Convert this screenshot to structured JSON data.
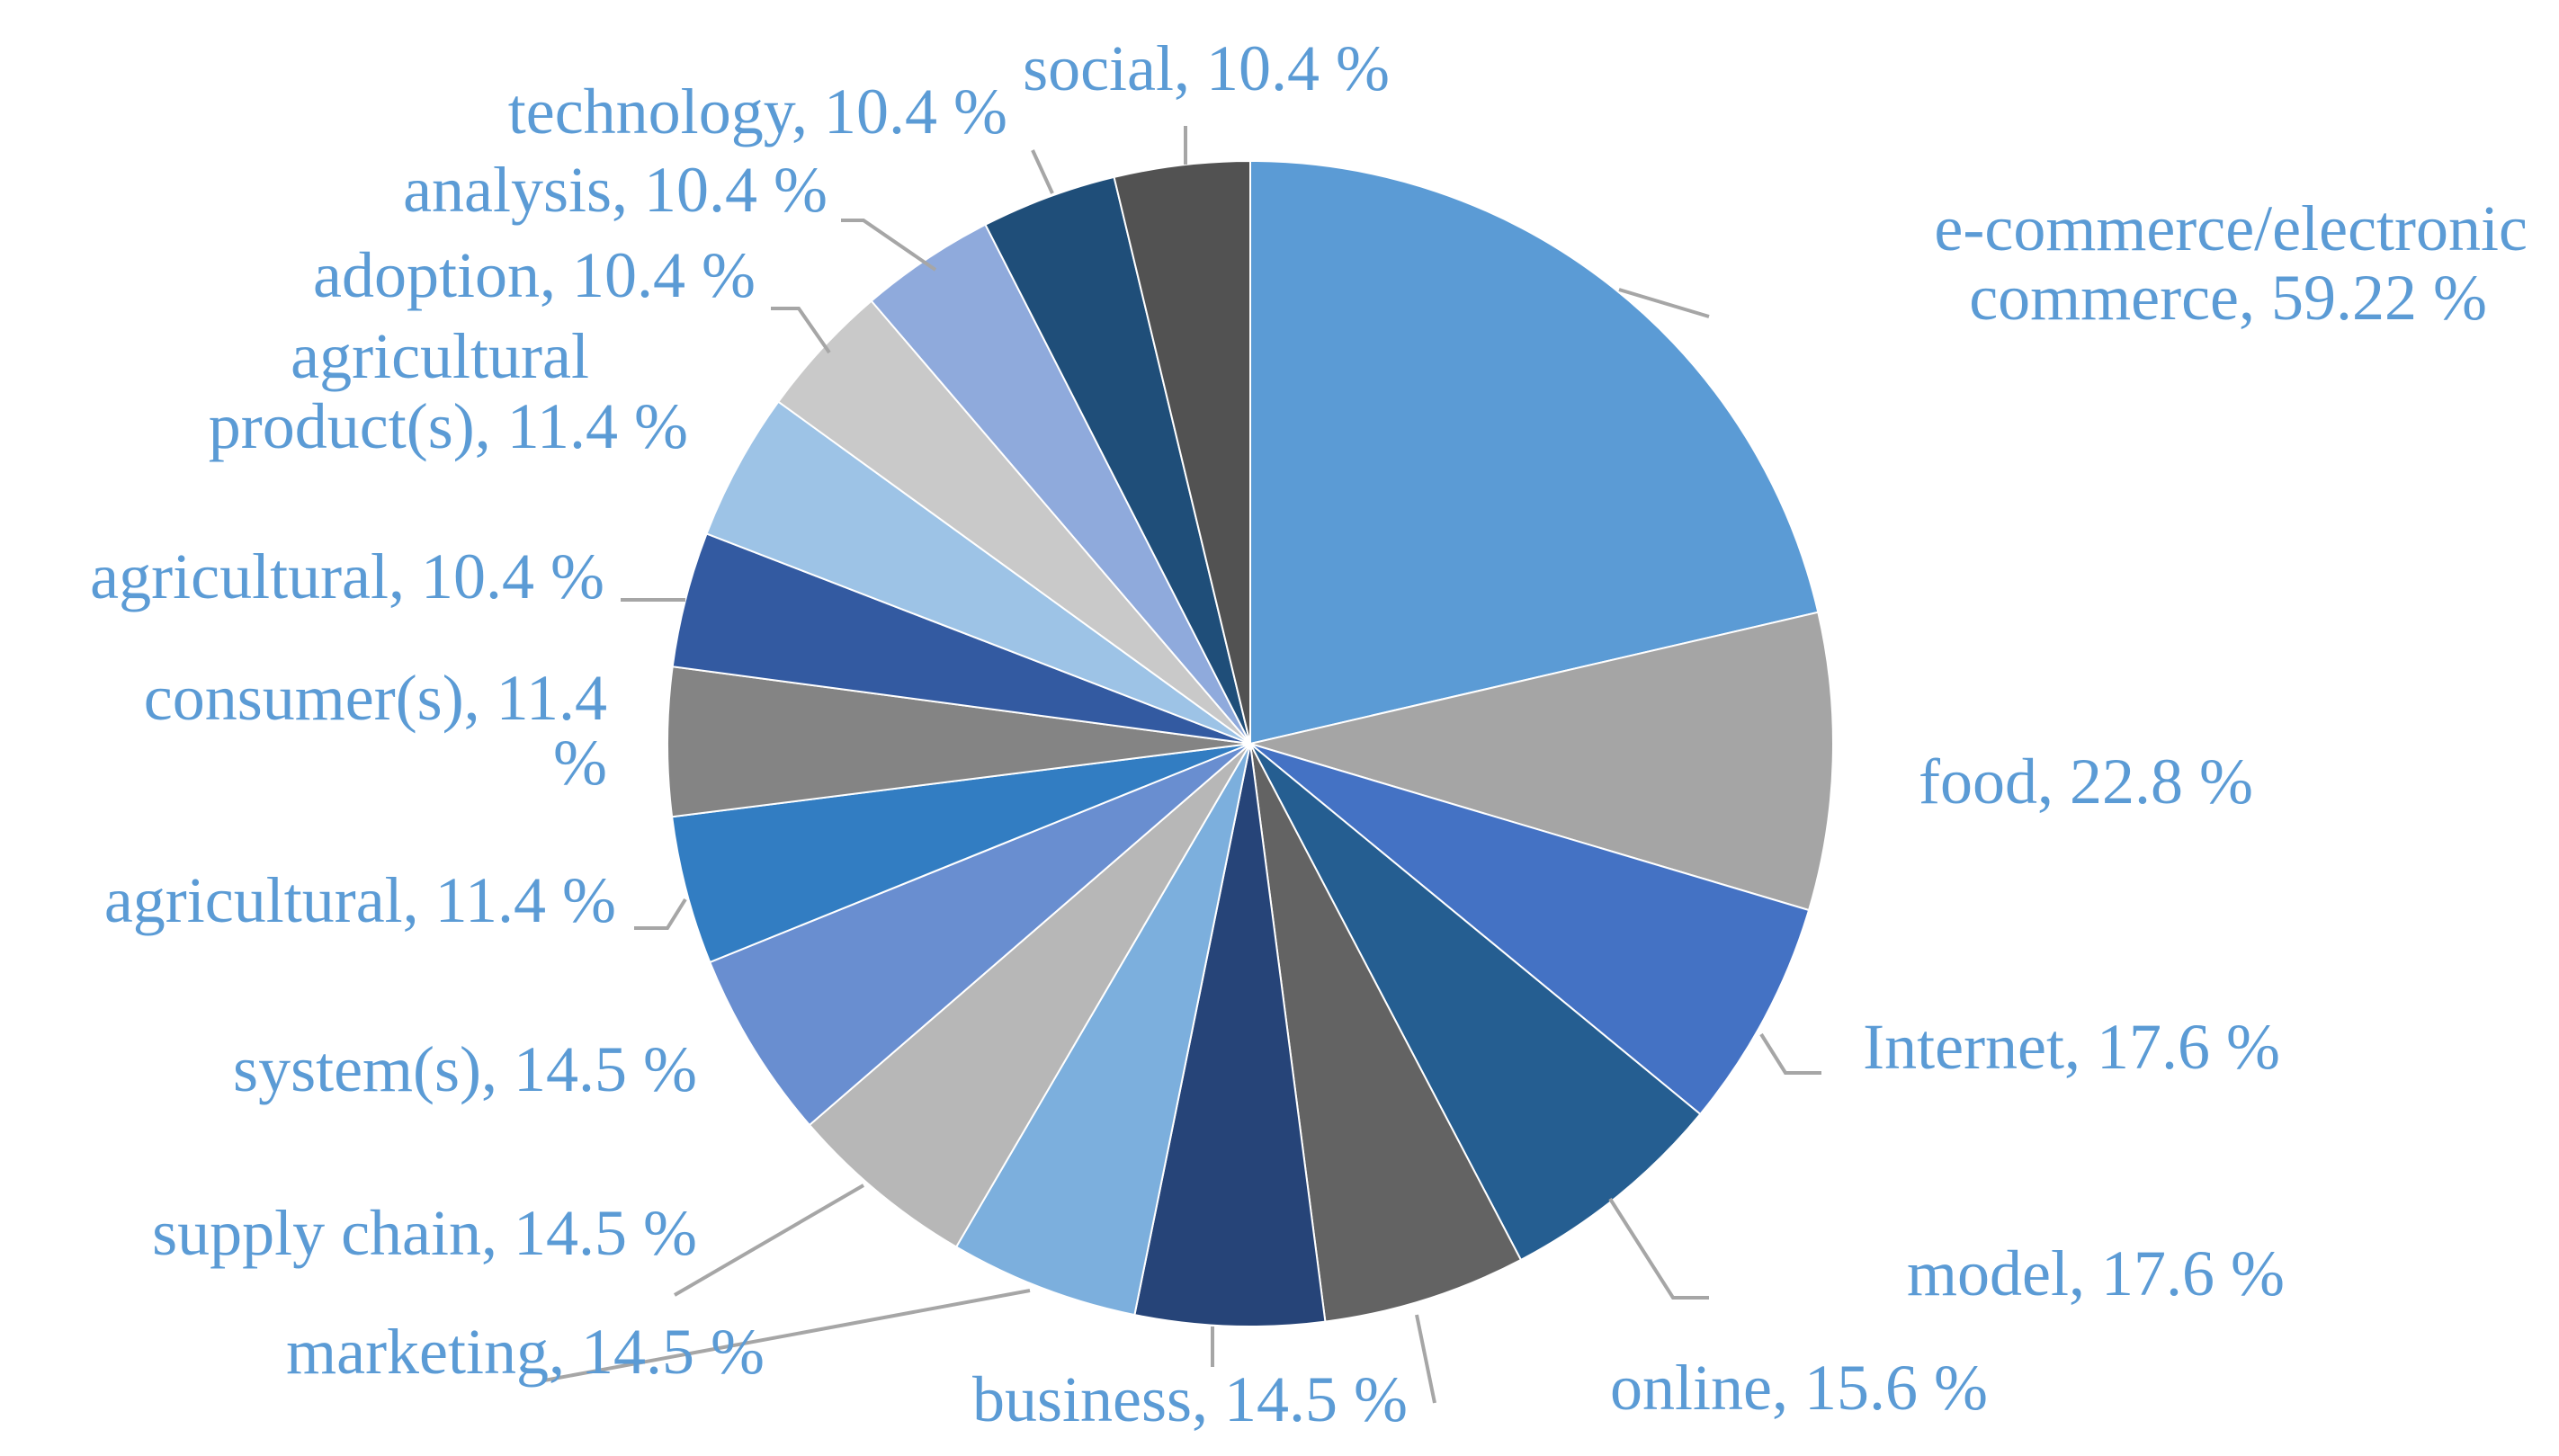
{
  "chart_data": {
    "type": "pie",
    "title": "",
    "legend": "none",
    "start_angle_deg": 0,
    "direction": "clockwise",
    "slices": [
      {
        "label": "e-commerce/electronic commerce, 59.22 %",
        "value": 59.22,
        "color": "#5b9bd5"
      },
      {
        "label": "food, 22.8 %",
        "value": 22.8,
        "color": "#a5a5a5"
      },
      {
        "label": "Internet, 17.6 %",
        "value": 17.6,
        "color": "#4472c4"
      },
      {
        "label": "model, 17.6 %",
        "value": 17.6,
        "color": "#255e91"
      },
      {
        "label": "online, 15.6 %",
        "value": 15.6,
        "color": "#636363"
      },
      {
        "label": "business, 14.5 %",
        "value": 14.5,
        "color": "#264478"
      },
      {
        "label": "marketing, 14.5 %",
        "value": 14.5,
        "color": "#7cafdd"
      },
      {
        "label": "supply chain, 14.5 %",
        "value": 14.5,
        "color": "#b7b7b7"
      },
      {
        "label": "system(s), 14.5 %",
        "value": 14.5,
        "color": "#698ed0"
      },
      {
        "label": "agricultural, 11.4 %",
        "value": 11.4,
        "color": "#327dc2"
      },
      {
        "label": "consumer(s), 11.4 %",
        "value": 11.4,
        "color": "#848484"
      },
      {
        "label": "agricultural, 10.4 %",
        "value": 10.4,
        "color": "#335aa1"
      },
      {
        "label": "agricultural product(s), 11.4 %",
        "value": 11.4,
        "color": "#9dc3e6"
      },
      {
        "label": "adoption, 10.4 %",
        "value": 10.4,
        "color": "#c9c9c9"
      },
      {
        "label": "analysis, 10.4 %",
        "value": 10.4,
        "color": "#8faadc"
      },
      {
        "label": "technology, 10.4 %",
        "value": 10.4,
        "color": "#1f4e79"
      },
      {
        "label": "social, 10.4 %",
        "value": 10.4,
        "color": "#525252"
      }
    ]
  }
}
